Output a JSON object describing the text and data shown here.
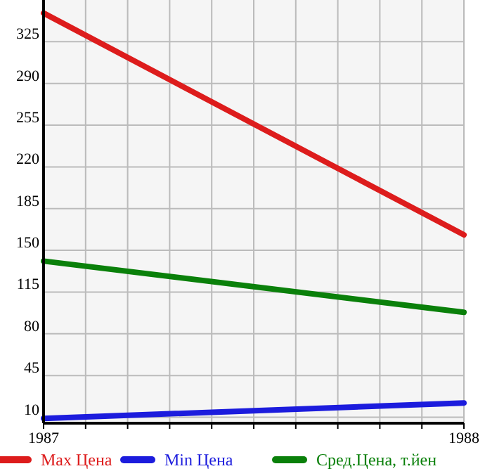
{
  "chart_data": {
    "type": "line",
    "x": [
      1987,
      1988
    ],
    "series": [
      {
        "name": "Max Цена",
        "color": "#dd1c1c",
        "values": [
          349,
          163
        ]
      },
      {
        "name": "Min Цена",
        "color": "#1c1cdd",
        "values": [
          9,
          22
        ]
      },
      {
        "name": "Сред.Цена, т.йен",
        "color": "#0a800a",
        "values": [
          141,
          98
        ]
      }
    ],
    "xlim": [
      1987,
      1988
    ],
    "xticks": [
      1987,
      {
        "value": 1987.1,
        "label": null
      },
      {
        "value": 1987.2,
        "label": null
      },
      {
        "value": 1987.3,
        "label": null
      },
      {
        "value": 1987.4,
        "label": null
      },
      {
        "value": 1987.5,
        "label": null
      },
      {
        "value": 1987.6,
        "label": null
      },
      {
        "value": 1987.7,
        "label": null
      },
      {
        "value": 1987.8,
        "label": null
      },
      {
        "value": 1987.9,
        "label": null
      },
      1988
    ],
    "ylim": [
      5,
      360
    ],
    "yticks": [
      10,
      45,
      80,
      115,
      150,
      185,
      220,
      255,
      290,
      325
    ],
    "grid": true,
    "legend": "bottom",
    "marker": "none",
    "line_style": "solid"
  }
}
